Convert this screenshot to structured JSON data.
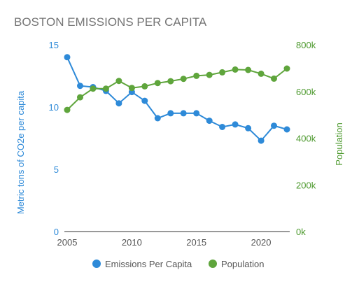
{
  "chart_data": {
    "type": "line",
    "title": "BOSTON EMISSIONS PER CAPITA",
    "x": [
      2005,
      2006,
      2007,
      2008,
      2009,
      2010,
      2011,
      2012,
      2013,
      2014,
      2015,
      2016,
      2017,
      2018,
      2019,
      2020,
      2021,
      2022
    ],
    "xlim": [
      2005,
      2022
    ],
    "x_ticks": [
      2005,
      2010,
      2015,
      2020
    ],
    "series": [
      {
        "name": "Emissions Per Capita",
        "axis": "left",
        "color": "#2e8ad8",
        "values": [
          14.0,
          11.7,
          11.6,
          11.3,
          10.3,
          11.2,
          10.5,
          9.1,
          9.5,
          9.5,
          9.5,
          8.9,
          8.4,
          8.6,
          8.3,
          7.3,
          8.5,
          8.2
        ]
      },
      {
        "name": "Population",
        "axis": "right",
        "color": "#5fa53c",
        "values": [
          521000,
          575000,
          612000,
          612000,
          645000,
          615000,
          622000,
          636000,
          644000,
          654000,
          667000,
          671000,
          682000,
          694000,
          692000,
          676000,
          655000,
          698000
        ]
      }
    ],
    "y_left": {
      "label": "Metric tons of CO2e per capita",
      "ylim": [
        0,
        15
      ],
      "ticks": [
        {
          "value": 0,
          "label": "0"
        },
        {
          "value": 5,
          "label": "5"
        },
        {
          "value": 10,
          "label": "10"
        },
        {
          "value": 15,
          "label": "15"
        }
      ]
    },
    "y_right": {
      "label": "Population",
      "ylim": [
        0,
        800000
      ],
      "ticks": [
        {
          "value": 0,
          "label": "0k"
        },
        {
          "value": 200000,
          "label": "200k"
        },
        {
          "value": 400000,
          "label": "400k"
        },
        {
          "value": 600000,
          "label": "600k"
        },
        {
          "value": 800000,
          "label": "800k"
        }
      ]
    },
    "grid": false,
    "legend_position": "bottom"
  }
}
